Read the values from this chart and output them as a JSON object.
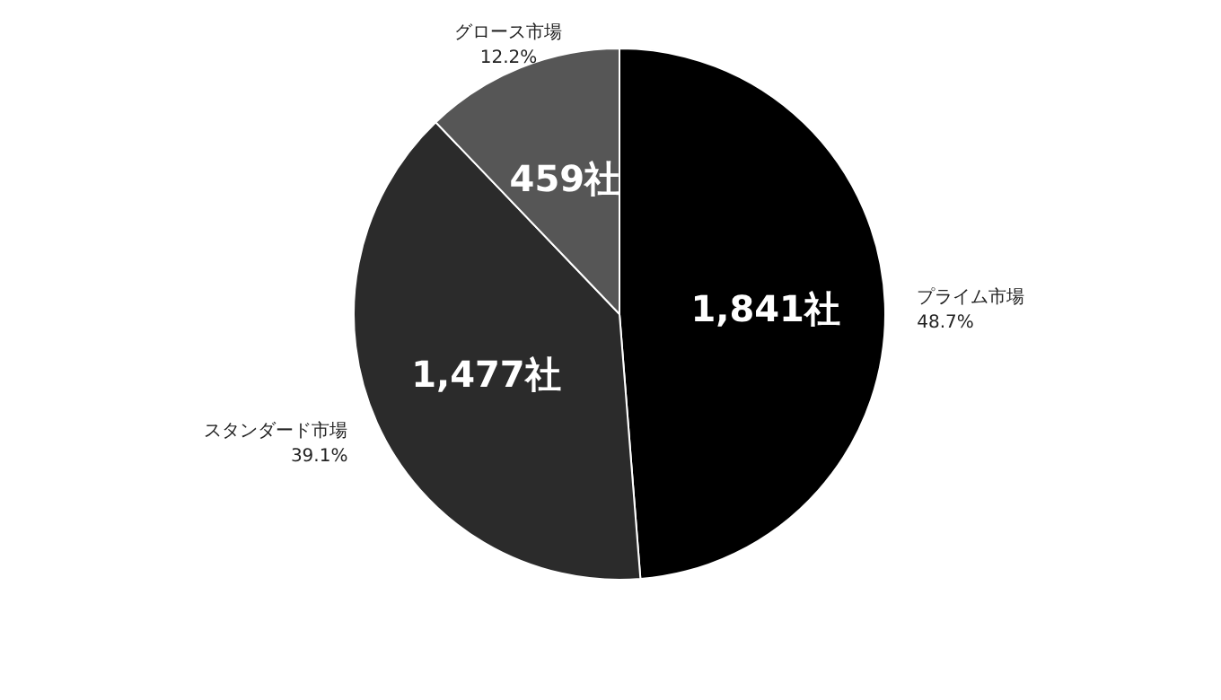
{
  "chart_data": {
    "type": "pie",
    "categories": [
      "プライム市場",
      "スタンダード市場",
      "グロース市場"
    ],
    "values": [
      1841,
      1477,
      459
    ],
    "value_labels": [
      "1,841社",
      "1,477社",
      "459社"
    ],
    "colors": [
      "#000000",
      "#2b2b2b",
      "#565656"
    ],
    "annotations": [
      "48.7%",
      "39.1%",
      "12.2%"
    ]
  }
}
